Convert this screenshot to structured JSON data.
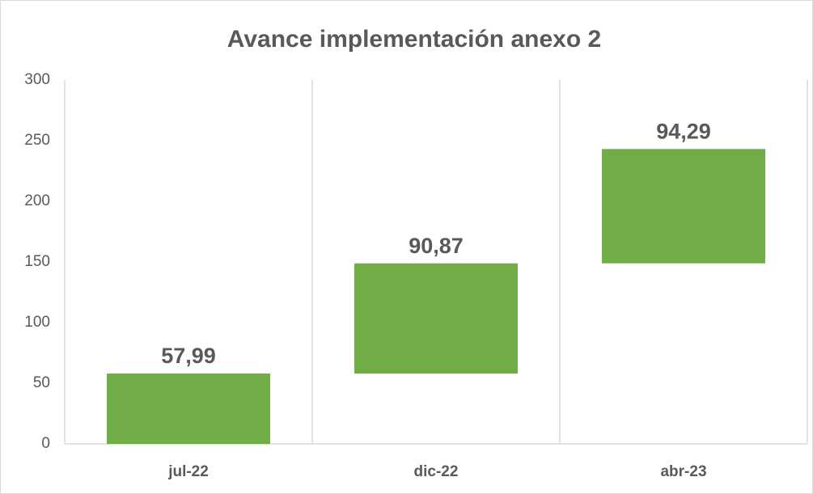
{
  "chart_data": {
    "type": "waterfall",
    "title": "Avance implementación anexo 2",
    "categories": [
      "jul-22",
      "dic-22",
      "abr-23"
    ],
    "values": [
      57.99,
      90.87,
      94.29
    ],
    "value_labels": [
      "57,99",
      "90,87",
      "94,29"
    ],
    "color": "#70ad47",
    "ylim": [
      0,
      300
    ],
    "yticks": [
      0,
      50,
      100,
      150,
      200,
      250,
      300
    ]
  }
}
